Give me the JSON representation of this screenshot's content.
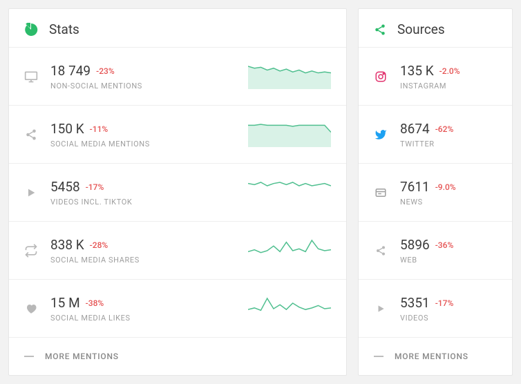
{
  "colors": {
    "accent_green": "#2bbb6a",
    "delta_red": "#e55353",
    "icon_gray": "#b8b8b8",
    "sparkline": "#4fbf8f",
    "sparkfill": "#d9f2e7",
    "instagram": "#e1306c",
    "twitter": "#1da1f2",
    "news": "#9e9e9e"
  },
  "stats": {
    "title": "Stats",
    "footer": "MORE MENTIONS",
    "rows": [
      {
        "icon": "monitor",
        "value": "18 749",
        "delta": "-23%",
        "label": "NON-SOCIAL MENTIONS",
        "spark_type": "area",
        "spark": [
          22,
          20,
          21,
          18,
          20,
          17,
          19,
          16,
          18,
          15,
          17,
          15,
          16,
          15
        ]
      },
      {
        "icon": "share",
        "value": "150 K",
        "delta": "-11%",
        "label": "SOCIAL MEDIA MENTIONS",
        "spark_type": "area",
        "spark": [
          20,
          20,
          21,
          20,
          20,
          20,
          20,
          19,
          20,
          20,
          20,
          20,
          20,
          13
        ]
      },
      {
        "icon": "play",
        "value": "5458",
        "delta": "-17%",
        "label": "VIDEOS INCL. TIKTOK",
        "spark_type": "line",
        "spark": [
          17,
          16,
          18,
          15,
          17,
          18,
          16,
          18,
          15,
          17,
          15,
          16,
          17,
          15
        ]
      },
      {
        "icon": "retweet",
        "value": "838 K",
        "delta": "-28%",
        "label": "SOCIAL MEDIA SHARES",
        "spark_type": "line",
        "spark": [
          10,
          12,
          9,
          11,
          16,
          10,
          20,
          11,
          13,
          10,
          22,
          13,
          11,
          12
        ]
      },
      {
        "icon": "heart",
        "value": "15 M",
        "delta": "-38%",
        "label": "SOCIAL MEDIA LIKES",
        "spark_type": "line",
        "spark": [
          12,
          14,
          11,
          26,
          13,
          18,
          12,
          20,
          15,
          12,
          14,
          17,
          13,
          14
        ]
      }
    ]
  },
  "sources": {
    "title": "Sources",
    "footer": "MORE MENTIONS",
    "rows": [
      {
        "icon": "instagram",
        "value": "135 K",
        "delta": "-2.0%",
        "label": "INSTAGRAM"
      },
      {
        "icon": "twitter",
        "value": "8674",
        "delta": "-62%",
        "label": "TWITTER"
      },
      {
        "icon": "news",
        "value": "7611",
        "delta": "-9.0%",
        "label": "NEWS"
      },
      {
        "icon": "share",
        "value": "5896",
        "delta": "-36%",
        "label": "WEB"
      },
      {
        "icon": "play",
        "value": "5351",
        "delta": "-17%",
        "label": "VIDEOS"
      }
    ]
  }
}
